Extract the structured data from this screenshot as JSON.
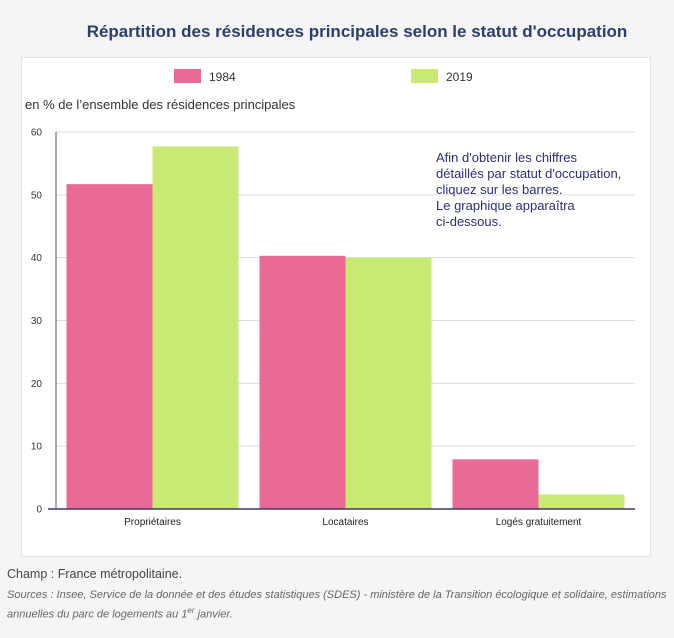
{
  "chart_data": {
    "type": "bar",
    "title": "Répartition des résidences principales selon le statut d'occupation",
    "ylabel": "en % de l’ensemble des résidences principales",
    "xlabel": "",
    "categories": [
      "Propriétaires",
      "Locataires",
      "Logés gratuitement"
    ],
    "series": [
      {
        "name": "1984",
        "color": "#e96a95",
        "values": [
          51.7,
          40.3,
          7.9
        ]
      },
      {
        "name": "2019",
        "color": "#c8ea74",
        "values": [
          57.7,
          40.0,
          2.3
        ]
      }
    ],
    "ylim": [
      0,
      60
    ],
    "yticks": [
      0,
      10,
      20,
      30,
      40,
      50,
      60
    ],
    "grid": true,
    "legend": "top"
  },
  "note_lines": [
    "Afin d'obtenir les chiffres",
    "détaillés par statut d'occupation,",
    "cliquez sur les barres.",
    "Le graphique apparaîtra",
    "ci-dessous."
  ],
  "champ": "Champ : France métropolitaine.",
  "sources_prefix": "Sources : Insee, Service de la donnée et des études statistiques (SDES) - ministère de la Transition écologique et solidaire, estimations annuelles du parc de logements au 1",
  "sources_sup": "er",
  "sources_suffix": " janvier."
}
